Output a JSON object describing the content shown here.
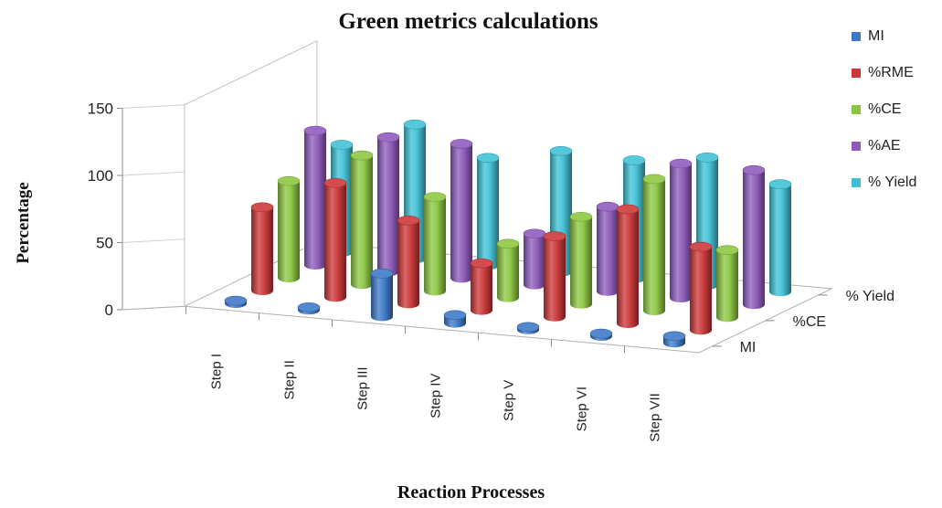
{
  "chart_data": {
    "type": "bar",
    "subtype": "3d-cylinder",
    "title": "Green metrics calculations",
    "xlabel": "Reaction Processes",
    "ylabel": "Percentage",
    "ylim": [
      0,
      150
    ],
    "yticks": [
      "0",
      "50",
      "100",
      "150"
    ],
    "categories": [
      "Step I",
      "Step II",
      "Step III",
      "Step IV",
      "Step V",
      "Step VI",
      "Step VII"
    ],
    "depth_labels": [
      "MI",
      "%CE",
      "% Yield"
    ],
    "legend_position": "top-right",
    "grid": false,
    "series": [
      {
        "name": "MI",
        "color": "#3b78c9",
        "values": [
          2,
          2,
          32,
          6,
          2,
          2,
          5
        ]
      },
      {
        "name": "%RME",
        "color": "#cc3636",
        "values": [
          62,
          85,
          62,
          35,
          60,
          85,
          62
        ]
      },
      {
        "name": "%CE",
        "color": "#8cc63f",
        "values": [
          72,
          96,
          70,
          40,
          65,
          98,
          50
        ]
      },
      {
        "name": "%AE",
        "color": "#8e59bc",
        "values": [
          100,
          100,
          100,
          38,
          63,
          100,
          100
        ]
      },
      {
        "name": "% Yield",
        "color": "#3ec0d6",
        "values": [
          80,
          100,
          80,
          90,
          88,
          95,
          80
        ]
      }
    ]
  }
}
